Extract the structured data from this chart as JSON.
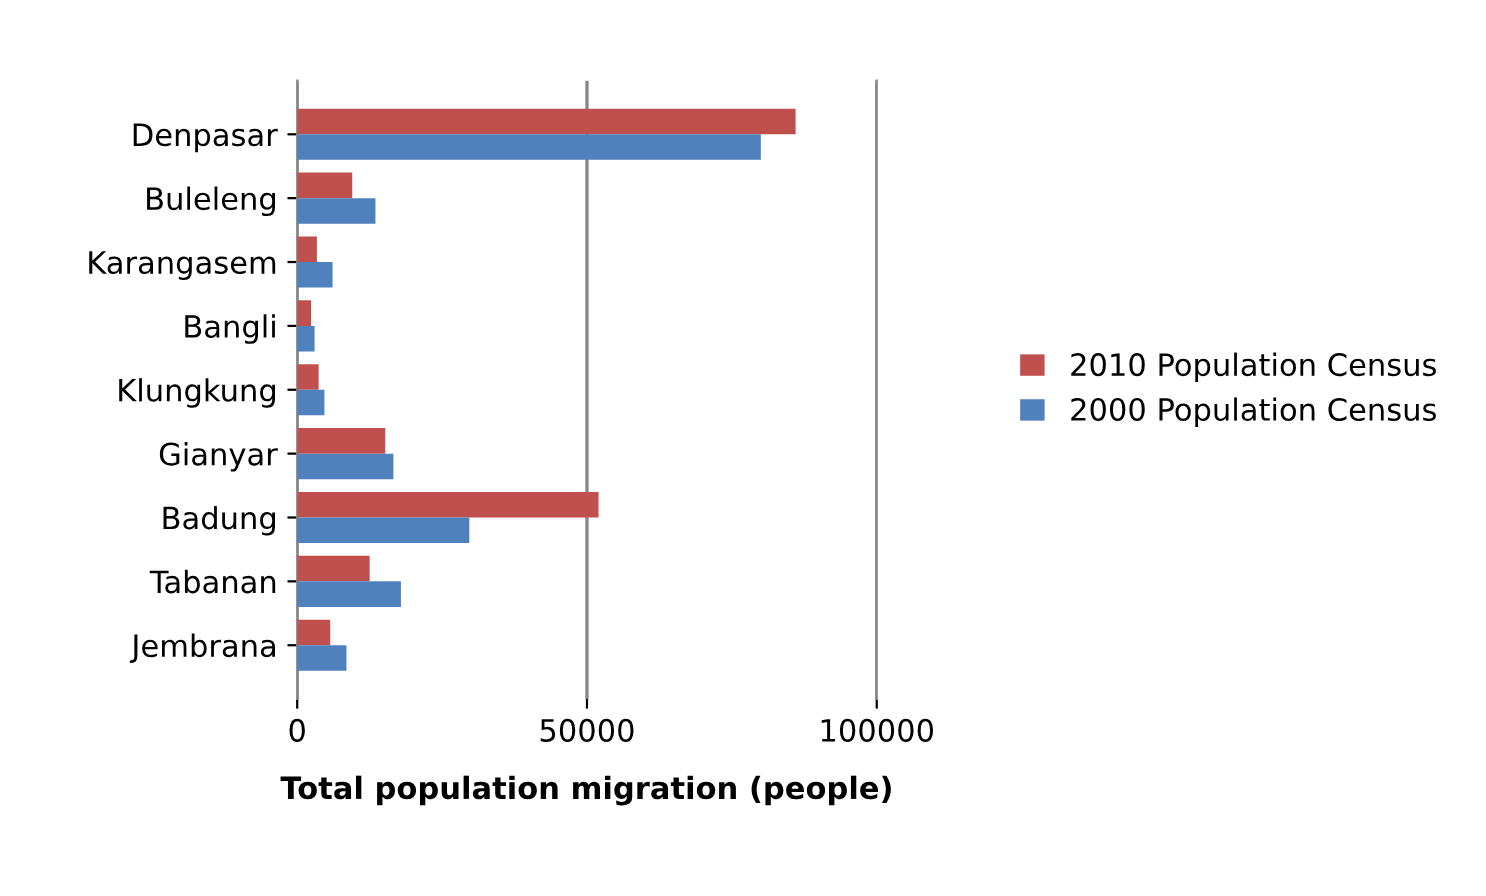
{
  "chart_data": {
    "type": "bar",
    "orientation": "horizontal",
    "xlabel": "Total population migration (people)",
    "categories": [
      "Denpasar",
      "Buleleng",
      "Karangasem",
      "Bangli",
      "Klungkung",
      "Gianyar",
      "Badung",
      "Tabanan",
      "Jembrana"
    ],
    "series": [
      {
        "name": "2010 Population Census",
        "color": "#c0504d",
        "values": [
          86000,
          9500,
          3400,
          2400,
          3700,
          15200,
          52000,
          12500,
          5700
        ]
      },
      {
        "name": "2000 Population Census",
        "color": "#4f81bd",
        "values": [
          80000,
          13500,
          6100,
          3000,
          4700,
          16600,
          29700,
          17900,
          8500
        ]
      }
    ],
    "xlim": [
      0,
      100000
    ],
    "xticks": [
      0,
      50000,
      100000
    ],
    "grid": "x",
    "legend": "right"
  }
}
